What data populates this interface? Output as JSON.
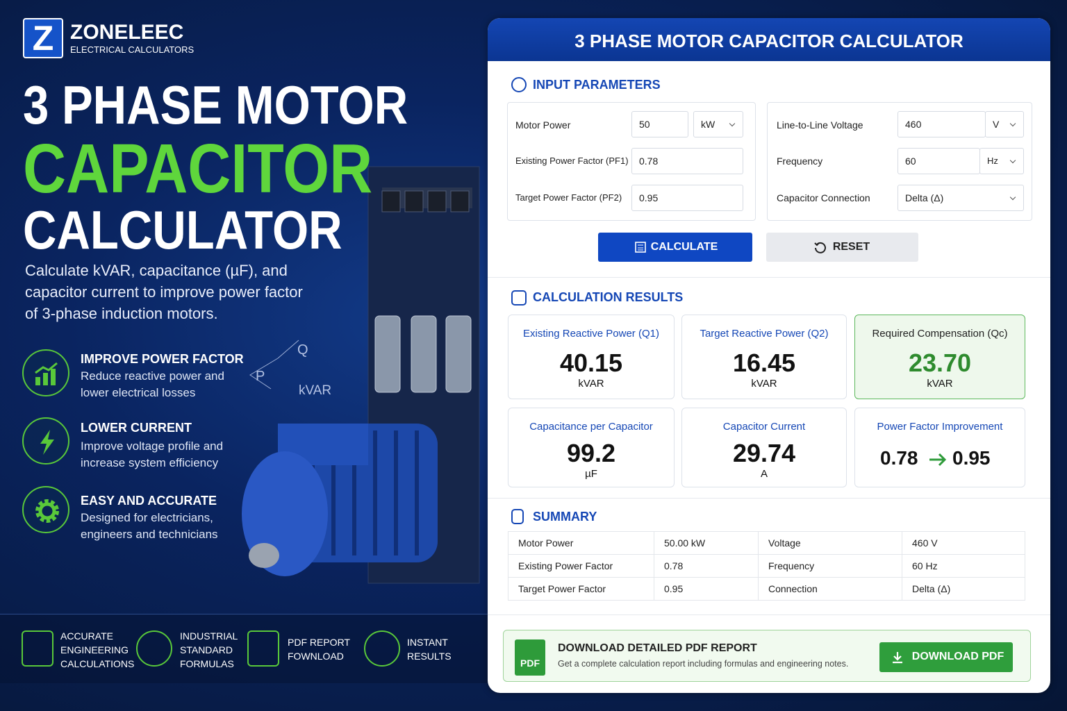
{
  "brand": {
    "logo": "Z",
    "name": "ZONELEEC",
    "tagline": "ELECTRICAL CALCULATORS"
  },
  "hero": {
    "title_line1": "3 PHASE MOTOR",
    "title_line2": "CAPACITOR",
    "title_line3": "CALCULATOR",
    "description": [
      "Calculate kVAR, capacitance (µF), and",
      "capacitor current to improve power factor",
      "of 3-phase induction motors."
    ]
  },
  "diagram": {
    "p": "P",
    "q": "Q",
    "kvar": "kVAR"
  },
  "features": [
    {
      "title": "IMPROVE POWER FACTOR",
      "text": [
        "Reduce reactive power and",
        "lower electrical losses"
      ]
    },
    {
      "title": "LOWER CURRENT",
      "text": [
        "Improve voltage profile and",
        "increase system efficiency"
      ]
    },
    {
      "title": "EASY AND ACCURATE",
      "text": [
        "Designed for electricians,",
        "engineers and technicians"
      ]
    }
  ],
  "badges": [
    {
      "lines": [
        "ACCURATE",
        "ENGINEERING",
        "CALCULATIONS"
      ]
    },
    {
      "lines": [
        "INDUSTRIAL",
        "STANDARD",
        "FORMULAS"
      ]
    },
    {
      "lines": [
        "PDF REPORT",
        "FOWNLOAD"
      ]
    },
    {
      "lines": [
        "INSTANT",
        "RESULTS"
      ]
    }
  ],
  "calculator": {
    "title": "3 PHASE MOTOR CAPACITOR CALCULATOR",
    "inputs": {
      "heading": "INPUT PARAMETERS",
      "left": [
        {
          "label": "Motor Power",
          "value": "50",
          "unit": "kW"
        },
        {
          "label": "Existing Power Factor (PF1)",
          "value": "0.78"
        },
        {
          "label": "Target Power Factor (PF2)",
          "value": "0.95"
        }
      ],
      "right": [
        {
          "label": "Line-to-Line Voltage",
          "value": "460",
          "unit": "V"
        },
        {
          "label": "Frequency",
          "value": "60",
          "unit": "Hz"
        },
        {
          "label": "Capacitor Connection",
          "value": "Delta (Δ)"
        }
      ]
    },
    "buttons": {
      "calculate": "CALCULATE",
      "reset": "RESET"
    },
    "results": {
      "heading": "CALCULATION RESULTS",
      "cards": [
        {
          "label": "Existing Reactive Power (Q1)",
          "value": "40.15",
          "unit": "kVAR"
        },
        {
          "label": "Target Reactive Power (Q2)",
          "value": "16.45",
          "unit": "kVAR"
        },
        {
          "label": "Required Compensation (Qc)",
          "value": "23.70",
          "unit": "kVAR"
        },
        {
          "label": "Capacitance per Capacitor",
          "value": "99.2",
          "unit": "µF"
        },
        {
          "label": "Capacitor Current",
          "value": "29.74",
          "unit": "A"
        }
      ],
      "pf_card": {
        "label": "Power Factor Improvement",
        "from": "0.78",
        "to": "0.95"
      }
    },
    "summary": {
      "heading": "SUMMARY",
      "rows": [
        [
          "Motor Power",
          "50.00 kW",
          "Voltage",
          "460 V"
        ],
        [
          "Existing Power Factor",
          "0.78",
          "Frequency",
          "60 Hz"
        ],
        [
          "Target Power Factor",
          "0.95",
          "Connection",
          "Delta (Δ)"
        ]
      ]
    },
    "download": {
      "icon_label": "PDF",
      "title": "DOWNLOAD DETAILED PDF REPORT",
      "text": "Get a complete calculation report including formulas and engineering notes.",
      "button": "DOWNLOAD PDF"
    }
  }
}
